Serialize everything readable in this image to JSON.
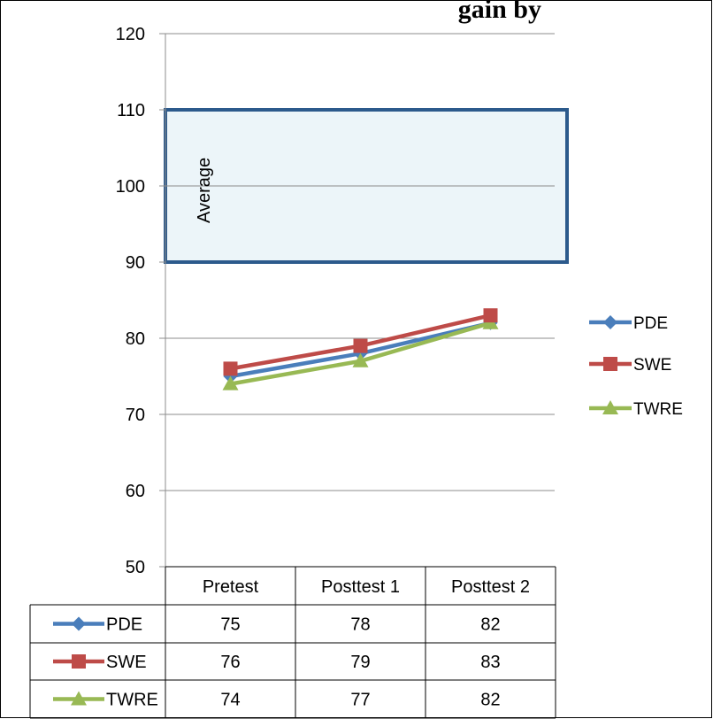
{
  "chart_data": {
    "type": "line",
    "title": "gain by",
    "categories": [
      "Pretest",
      "Posttest 1",
      "Posttest 2"
    ],
    "series": [
      {
        "name": "PDE",
        "values": [
          75,
          78,
          82
        ],
        "color": "#4a7ebb",
        "marker": "diamond"
      },
      {
        "name": "SWE",
        "values": [
          76,
          79,
          83
        ],
        "color": "#be4b48",
        "marker": "square"
      },
      {
        "name": "TWRE",
        "values": [
          74,
          77,
          82
        ],
        "color": "#98b954",
        "marker": "triangle"
      }
    ],
    "ylim": [
      50,
      120
    ],
    "yticks": [
      50,
      60,
      70,
      80,
      90,
      100,
      110,
      120
    ],
    "grid": true,
    "legend": "right",
    "data_table": true,
    "band": {
      "label": "Average",
      "from": 90,
      "to": 110,
      "fill": "#e9f3f8",
      "border": "#2c5a8c"
    }
  }
}
